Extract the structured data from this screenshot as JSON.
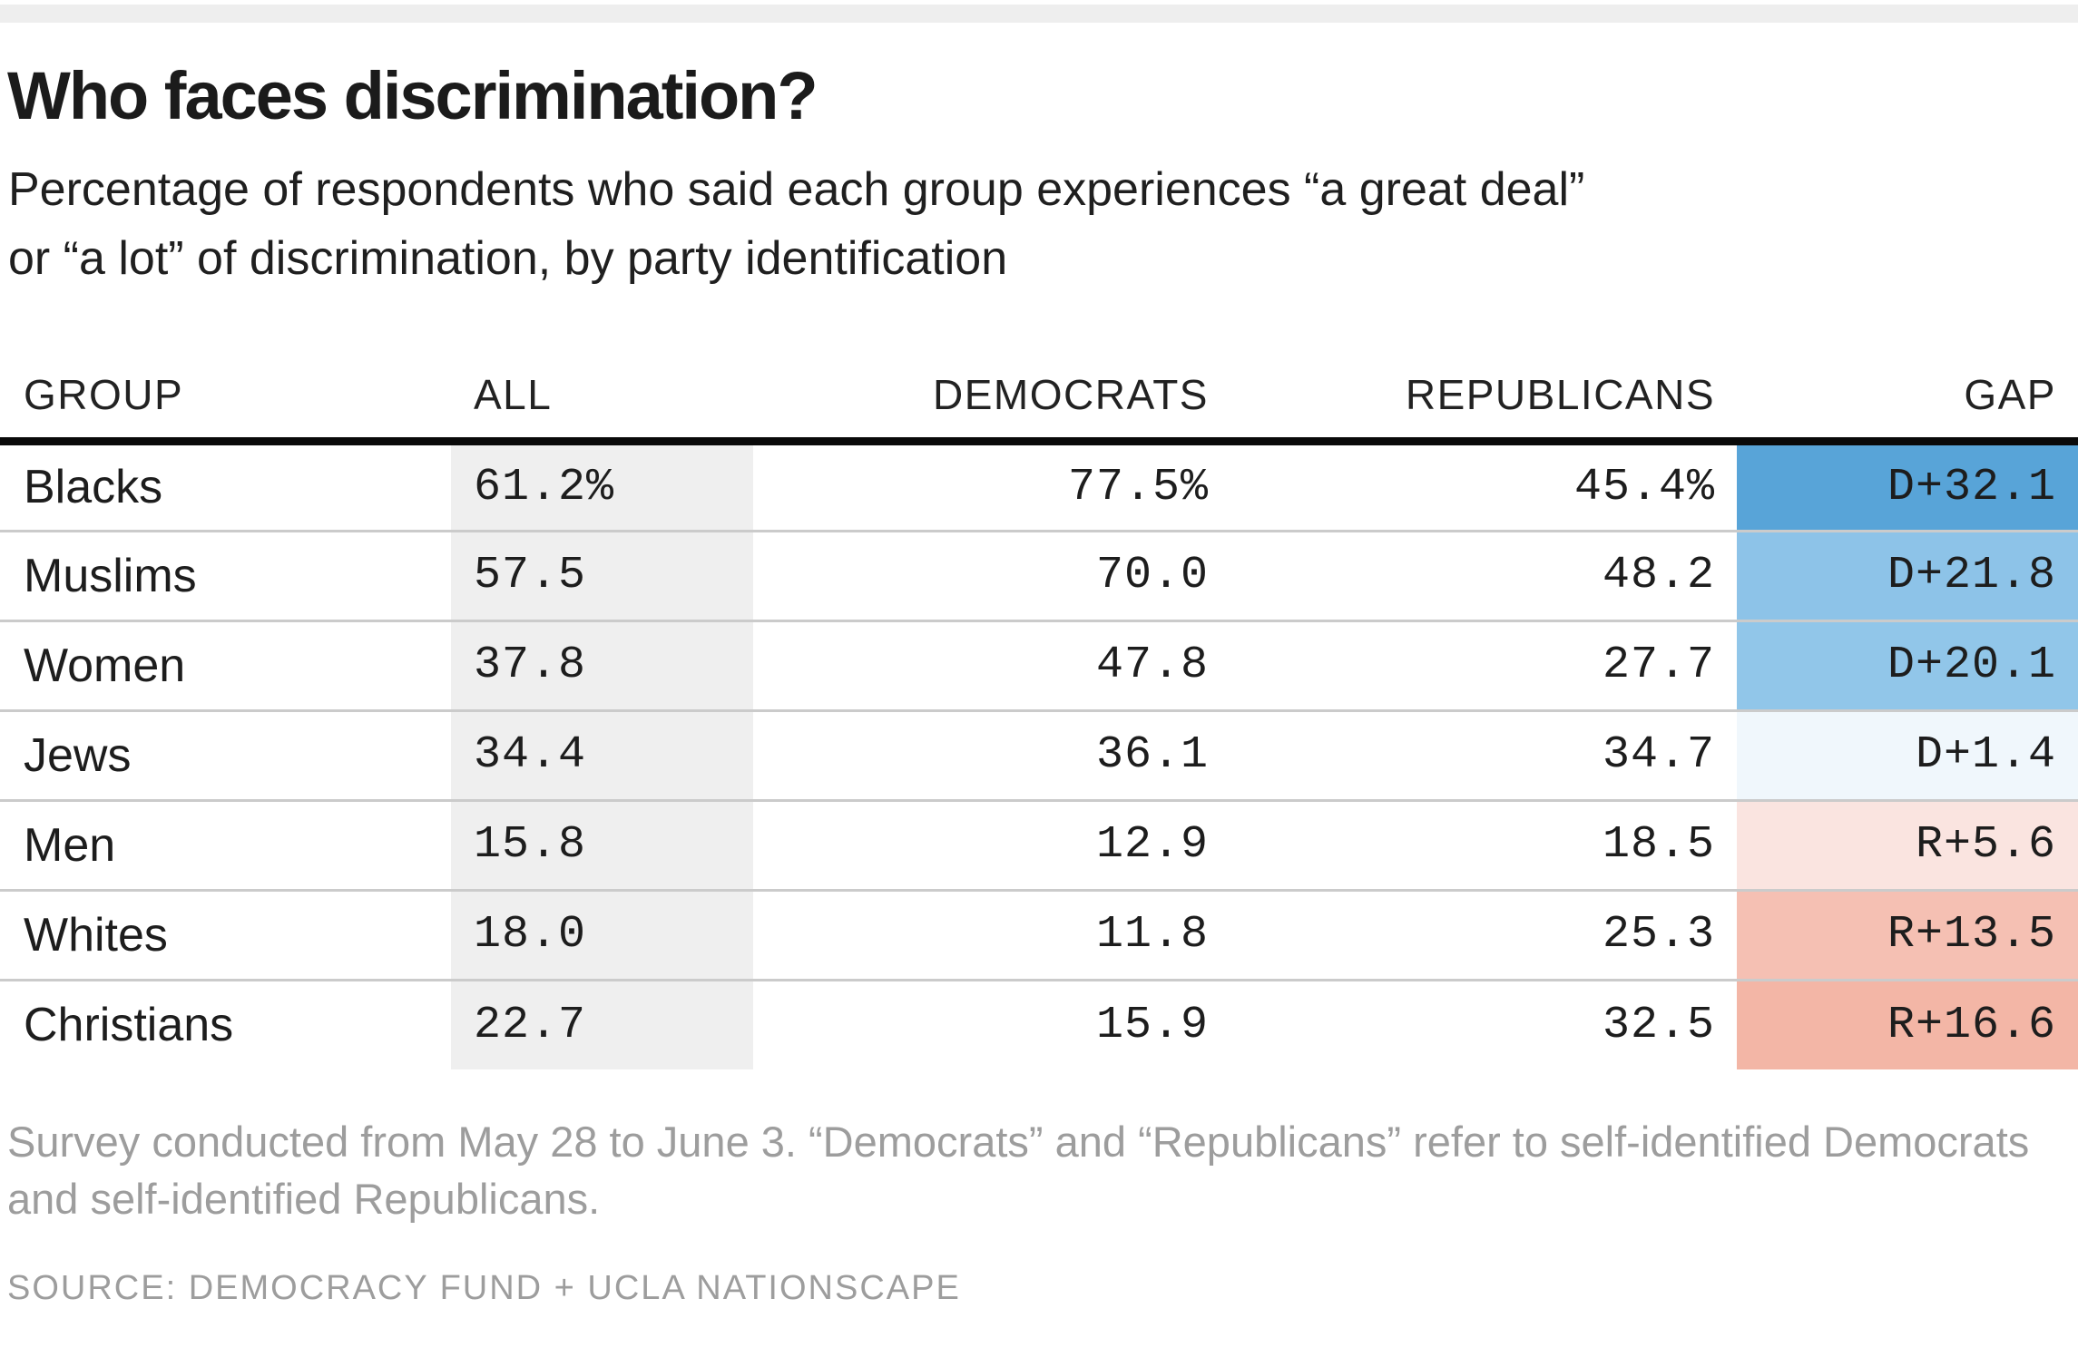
{
  "header": {
    "title": "Who faces discrimination?",
    "subtitle_lines": [
      "Percentage of respondents who said each group experiences “a great deal”",
      "or “a lot” of discrimination, by party identification"
    ]
  },
  "table": {
    "columns": {
      "group": "GROUP",
      "all": "ALL",
      "democrats": "DEMOCRATS",
      "republicans": "REPUBLICANS",
      "gap": "GAP"
    },
    "rows": [
      {
        "group": "Blacks",
        "all": "61.2%",
        "democrats": "77.5%",
        "republicans": "45.4%",
        "gap": "D+32.1",
        "gap_color": "#58a4d8"
      },
      {
        "group": "Muslims",
        "all": "57.5",
        "democrats": "70.0",
        "republicans": "48.2",
        "gap": "D+21.8",
        "gap_color": "#8dc3e8"
      },
      {
        "group": "Women",
        "all": "37.8",
        "democrats": "47.8",
        "republicans": "27.7",
        "gap": "D+20.1",
        "gap_color": "#91c6e9"
      },
      {
        "group": "Jews",
        "all": "34.4",
        "democrats": "36.1",
        "republicans": "34.7",
        "gap": "D+1.4",
        "gap_color": "#f0f7fc"
      },
      {
        "group": "Men",
        "all": "15.8",
        "democrats": "12.9",
        "republicans": "18.5",
        "gap": "R+5.6",
        "gap_color": "#fae4e0"
      },
      {
        "group": "Whites",
        "all": "18.0",
        "democrats": "11.8",
        "republicans": "25.3",
        "gap": "R+13.5",
        "gap_color": "#f5c0b3"
      },
      {
        "group": "Christians",
        "all": "22.7",
        "democrats": "15.9",
        "republicans": "32.5",
        "gap": "R+16.6",
        "gap_color": "#f3b6a6"
      }
    ]
  },
  "footer": {
    "note_lines": [
      "Survey conducted from May 28 to June 3. “Democrats” and “Republicans” refer to self-identified Democrats",
      "and self-identified Republicans."
    ],
    "source": "SOURCE: DEMOCRACY FUND + UCLA NATIONSCAPE"
  },
  "colors": {
    "top_strip": "#eeeeee",
    "all_column_band": "#efefef",
    "header_rule": "#0a0a0a",
    "row_separator": "#cbcbcb",
    "democrat_blue": "#58a4d8",
    "republican_red": "#f3b6a6"
  },
  "chart_data": {
    "type": "table",
    "title": "Who faces discrimination?",
    "subtitle": "Percentage of respondents who said each group experiences “a great deal” or “a lot” of discrimination, by party identification",
    "columns": [
      "GROUP",
      "ALL",
      "DEMOCRATS",
      "REPUBLICANS",
      "GAP"
    ],
    "categories": [
      "Blacks",
      "Muslims",
      "Women",
      "Jews",
      "Men",
      "Whites",
      "Christians"
    ],
    "series": [
      {
        "name": "ALL",
        "values": [
          61.2,
          57.5,
          37.8,
          34.4,
          15.8,
          18.0,
          22.7
        ]
      },
      {
        "name": "DEMOCRATS",
        "values": [
          77.5,
          70.0,
          47.8,
          36.1,
          12.9,
          11.8,
          15.9
        ]
      },
      {
        "name": "REPUBLICANS",
        "values": [
          45.4,
          48.2,
          27.7,
          34.7,
          18.5,
          25.3,
          32.5
        ]
      },
      {
        "name": "GAP",
        "values": [
          "D+32.1",
          "D+21.8",
          "D+20.1",
          "D+1.4",
          "R+5.6",
          "R+13.5",
          "R+16.6"
        ]
      }
    ],
    "notes": "GAP cells shaded blue for Democratic-leaning gaps, red for Republican-leaning gaps; intensity scales with gap size. Survey conducted from May 28 to June 3.",
    "source": "SOURCE: DEMOCRACY FUND + UCLA NATIONSCAPE"
  }
}
